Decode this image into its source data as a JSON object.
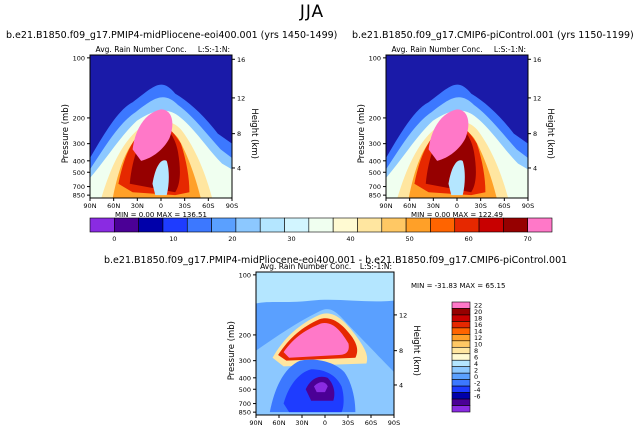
{
  "title": "JJA",
  "chart_data": [
    {
      "type": "heatmap",
      "title": "b.e21.B1850.f09_g17.PMIP4-midPliocene-eoi400.001 (yrs 1450-1499)",
      "subtitle": "Avg. Rain Number Conc.",
      "corner_label": "L:S:-1:N:",
      "xlabel": "",
      "ylabel": "Pressure (mb)",
      "y2label": "Height (km)",
      "x_ticks": [
        "90N",
        "60N",
        "30N",
        "0",
        "30S",
        "60S",
        "90S"
      ],
      "y_ticks": [
        "100",
        "200",
        "300",
        "400",
        "500",
        "700",
        "850"
      ],
      "y2_ticks": [
        "16",
        "12",
        "8",
        "4"
      ],
      "min_max_text": "MIN =   0.00   MAX = 136.51",
      "colorbar": {
        "labels": [
          "0",
          "10",
          "20",
          "30",
          "40",
          "50",
          "60",
          "70"
        ],
        "colors": [
          "#8a2be2",
          "#4b0096",
          "#0000aa",
          "#1e3cff",
          "#3c78ff",
          "#5aa0ff",
          "#8cc8ff",
          "#b4e6ff",
          "#d2f5ff",
          "#f0fff0",
          "#fffad2",
          "#ffe6a0",
          "#ffc864",
          "#ffa028",
          "#ff6400",
          "#e62800",
          "#c80000",
          "#960000",
          "#ff78c8"
        ]
      },
      "colorbar_range": [
        0,
        70
      ]
    },
    {
      "type": "heatmap",
      "title": "b.e21.B1850.f09_g17.CMIP6-piControl.001 (yrs 1150-1199)",
      "subtitle": "Avg. Rain Number Conc.",
      "corner_label": "L:S:-1:N:",
      "xlabel": "",
      "ylabel": "Pressure (mb)",
      "y2label": "Height (km)",
      "x_ticks": [
        "90N",
        "60N",
        "30N",
        "0",
        "30S",
        "60S",
        "90S"
      ],
      "y_ticks": [
        "100",
        "200",
        "300",
        "400",
        "500",
        "700",
        "850"
      ],
      "y2_ticks": [
        "16",
        "12",
        "8",
        "4"
      ],
      "min_max_text": "MIN =   0.00   MAX = 122.49",
      "colorbar": {
        "labels": [
          "0",
          "10",
          "20",
          "30",
          "40",
          "50",
          "60",
          "70"
        ],
        "colors": [
          "#8a2be2",
          "#4b0096",
          "#0000aa",
          "#1e3cff",
          "#3c78ff",
          "#5aa0ff",
          "#8cc8ff",
          "#b4e6ff",
          "#d2f5ff",
          "#f0fff0",
          "#fffad2",
          "#ffe6a0",
          "#ffc864",
          "#ffa028",
          "#ff6400",
          "#e62800",
          "#c80000",
          "#960000",
          "#ff78c8"
        ]
      },
      "colorbar_range": [
        0,
        70
      ]
    },
    {
      "type": "heatmap",
      "title": "b.e21.B1850.f09_g17.PMIP4-midPliocene-eoi400.001 - b.e21.B1850.f09_g17.CMIP6-piControl.001",
      "subtitle": "Avg. Rain Number Conc.",
      "corner_label": "L:S:-1:N:",
      "xlabel": "",
      "ylabel": "Pressure (mb)",
      "y2label": "Height (km)",
      "x_ticks": [
        "90N",
        "60N",
        "30N",
        "0",
        "30S",
        "60S",
        "90S"
      ],
      "y_ticks": [
        "100",
        "200",
        "300",
        "400",
        "500",
        "700",
        "850"
      ],
      "y2_ticks": [
        "12",
        "8",
        "4"
      ],
      "min_max_text": "MIN = -31.83   MAX =  65.15",
      "colorbar": {
        "labels": [
          "22",
          "20",
          "18",
          "16",
          "14",
          "12",
          "10",
          "8",
          "6",
          "4",
          "2",
          "0",
          "-2",
          "-4",
          "-6"
        ],
        "colors": [
          "#ff78c8",
          "#960000",
          "#c80000",
          "#e62800",
          "#ff6400",
          "#ffa028",
          "#ffc864",
          "#ffe6a0",
          "#fffad2",
          "#b4e6ff",
          "#8cc8ff",
          "#5aa0ff",
          "#3c78ff",
          "#1e3cff",
          "#0000aa",
          "#4b0096",
          "#8a2be2"
        ]
      }
    }
  ]
}
